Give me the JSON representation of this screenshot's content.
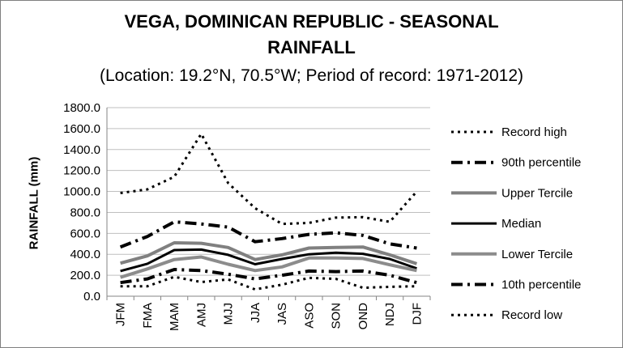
{
  "chart_data": {
    "type": "line",
    "title": "VEGA, DOMINICAN REPUBLIC - SEASONAL RAINFALL",
    "title_lines": [
      "VEGA, DOMINICAN REPUBLIC - SEASONAL",
      "RAINFALL"
    ],
    "subtitle": "(Location: 19.2°N, 70.5°W; Period of record: 1971-2012)",
    "xlabel": "",
    "ylabel": "RAINFALL (mm)",
    "ylim": [
      0,
      1800
    ],
    "yticks": [
      "0.0",
      "200.0",
      "400.0",
      "600.0",
      "800.0",
      "1000.0",
      "1200.0",
      "1400.0",
      "1600.0",
      "1800.0"
    ],
    "grid": "horizontal",
    "legend_position": "right",
    "categories": [
      "JFM",
      "FMA",
      "MAM",
      "AMJ",
      "MJJ",
      "JJA",
      "JAS",
      "ASO",
      "SON",
      "OND",
      "NDJ",
      "DJF"
    ],
    "series": [
      {
        "name": "Record high",
        "color": "#000000",
        "style": "dotted",
        "width": 3,
        "values": [
          985,
          1020,
          1140,
          1550,
          1080,
          840,
          690,
          700,
          750,
          755,
          710,
          1000
        ]
      },
      {
        "name": "90th percentile",
        "color": "#000000",
        "style": "dashdot",
        "width": 4,
        "values": [
          470,
          570,
          710,
          690,
          660,
          520,
          550,
          590,
          605,
          580,
          500,
          460
        ]
      },
      {
        "name": "Upper Tercile",
        "color": "#808080",
        "style": "solid",
        "width": 4,
        "values": [
          315,
          385,
          510,
          505,
          465,
          350,
          395,
          460,
          465,
          470,
          395,
          310
        ]
      },
      {
        "name": "Median",
        "color": "#000000",
        "style": "solid",
        "width": 3,
        "values": [
          240,
          310,
          440,
          445,
          395,
          305,
          355,
          400,
          415,
          405,
          355,
          265
        ]
      },
      {
        "name": "Lower Tercile",
        "color": "#8c8c8c",
        "style": "solid",
        "width": 4,
        "values": [
          180,
          260,
          350,
          375,
          305,
          245,
          280,
          365,
          365,
          360,
          300,
          245
        ]
      },
      {
        "name": "10th percentile",
        "color": "#000000",
        "style": "dashdot",
        "width": 4,
        "values": [
          130,
          165,
          255,
          245,
          210,
          165,
          200,
          240,
          235,
          240,
          200,
          130
        ]
      },
      {
        "name": "Record low",
        "color": "#000000",
        "style": "dotted",
        "width": 3,
        "values": [
          95,
          95,
          185,
          135,
          160,
          65,
          110,
          175,
          165,
          80,
          90,
          95
        ]
      }
    ]
  }
}
